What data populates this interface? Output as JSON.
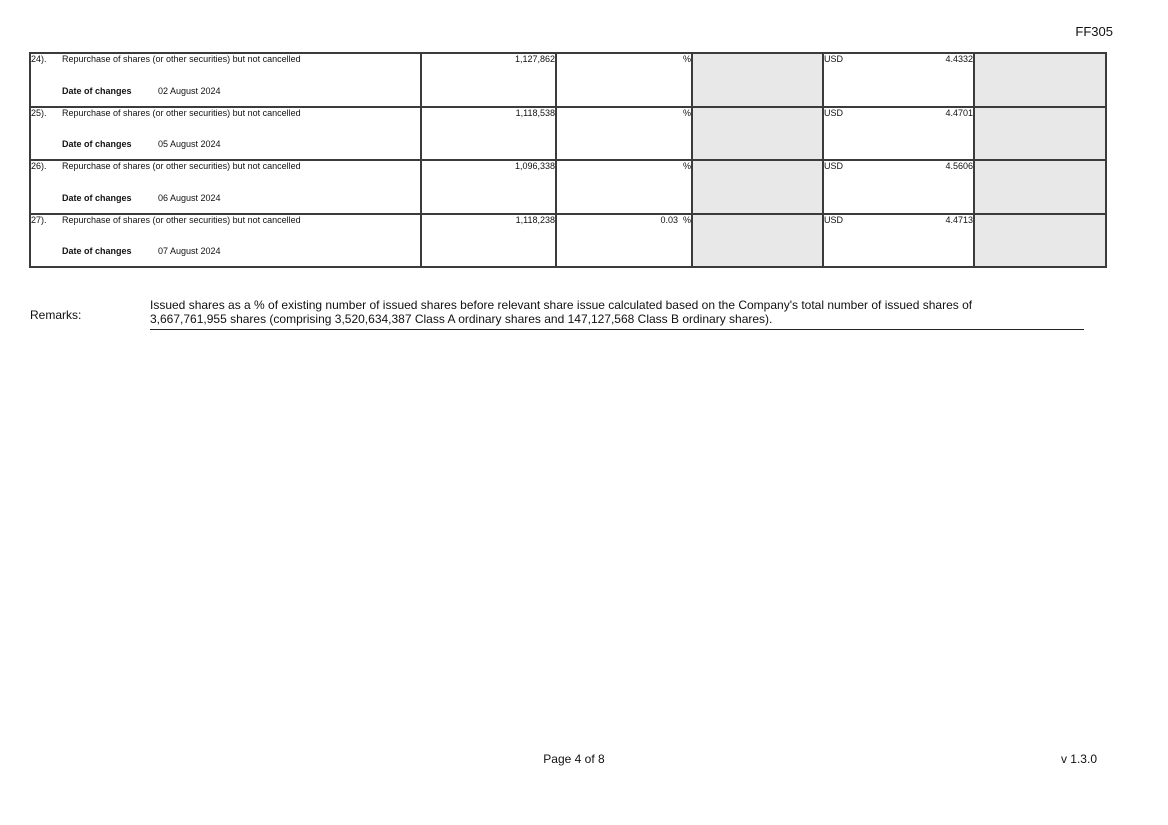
{
  "page": {
    "form_code": "FF305",
    "footer": {
      "page_indicator": "Page 4 of 8",
      "version": "v 1.3.0"
    }
  },
  "repurchase_table": {
    "rows": [
      {
        "number": "24).",
        "description": "Repurchase of shares (or other securities) but not cancelled",
        "date_label": "Date of changes",
        "date": "02 August 2024",
        "shares": "1,127,862",
        "percent": "",
        "percent_sign": "%",
        "currency": "USD",
        "price": "4.4332"
      },
      {
        "number": "25).",
        "description": "Repurchase of shares (or other securities) but not cancelled",
        "date_label": "Date of changes",
        "date": "05 August 2024",
        "shares": "1,118,538",
        "percent": "",
        "percent_sign": "%",
        "currency": "USD",
        "price": "4.4701"
      },
      {
        "number": "26).",
        "description": "Repurchase of shares (or other securities) but not cancelled",
        "date_label": "Date of changes",
        "date": "06 August 2024",
        "shares": "1,096,338",
        "percent": "",
        "percent_sign": "%",
        "currency": "USD",
        "price": "4.5606"
      },
      {
        "number": "27).",
        "description": "Repurchase of shares (or other securities) but not cancelled",
        "date_label": "Date of changes",
        "date": "07 August 2024",
        "shares": "1,118,238",
        "percent": "0.03",
        "percent_sign": "%",
        "currency": "USD",
        "price": "4.4713"
      }
    ]
  },
  "remarks": {
    "label": "Remarks:",
    "lines": [
      "Issued shares as a % of existing number of issued shares before relevant share issue calculated based on the Company's total number of issued shares of",
      "3,667,761,955 shares (comprising 3,520,634,387 Class A ordinary shares and 147,127,568 Class B ordinary shares)."
    ]
  },
  "colors": {
    "shaded_cell": "#e8e8e8",
    "table_border": "#3b3b3b"
  }
}
